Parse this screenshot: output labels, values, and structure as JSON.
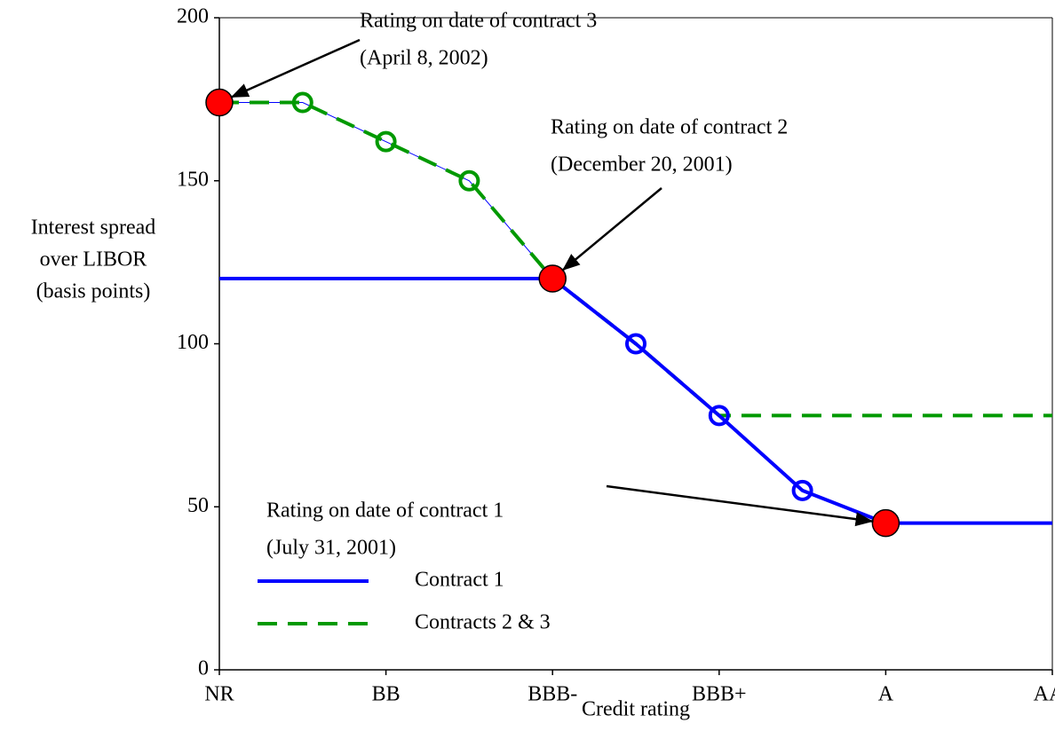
{
  "chart_data": {
    "type": "line",
    "x_label": "Credit rating",
    "y_label": [
      "Interest spread",
      "over LIBOR",
      "(basis points)"
    ],
    "categories": [
      "NR",
      null,
      "BB",
      null,
      "BBB-",
      null,
      "BBB+",
      null,
      "A",
      null,
      "AA-"
    ],
    "ylim": [
      0,
      200
    ],
    "yticks": [
      0,
      50,
      100,
      150,
      200
    ],
    "series": [
      {
        "name": "Contract 1",
        "color": "#0000ff",
        "dash": false,
        "width": 4,
        "values": [
          120,
          120,
          120,
          120,
          120,
          100,
          78,
          55,
          45,
          45,
          45
        ],
        "marker_indices": [
          5,
          6,
          7
        ]
      },
      {
        "name": "Contracts 2 & 3",
        "color": "#009900",
        "dash": true,
        "width": 4,
        "values": [
          174,
          174,
          162,
          150,
          120,
          100,
          78,
          78,
          78,
          78,
          78
        ],
        "marker_indices": [
          1,
          2,
          3
        ]
      },
      {
        "color": "#0000ff",
        "dash": false,
        "width": 1,
        "values": [
          174,
          174,
          162,
          150,
          120,
          null,
          null,
          null,
          null,
          null,
          null
        ]
      }
    ],
    "annotations": [
      {
        "text": [
          "Rating on date of contract 3",
          "(April 8, 2002)"
        ],
        "category": 0,
        "value": 174
      },
      {
        "text": [
          "Rating on date of contract 2",
          "(December 20, 2001)"
        ],
        "category": 4,
        "value": 120
      },
      {
        "text": [
          "Rating on date of contract 1",
          "(July 31, 2001)"
        ],
        "category": 8,
        "value": 45
      }
    ],
    "annotation_color": "#ff0000"
  }
}
